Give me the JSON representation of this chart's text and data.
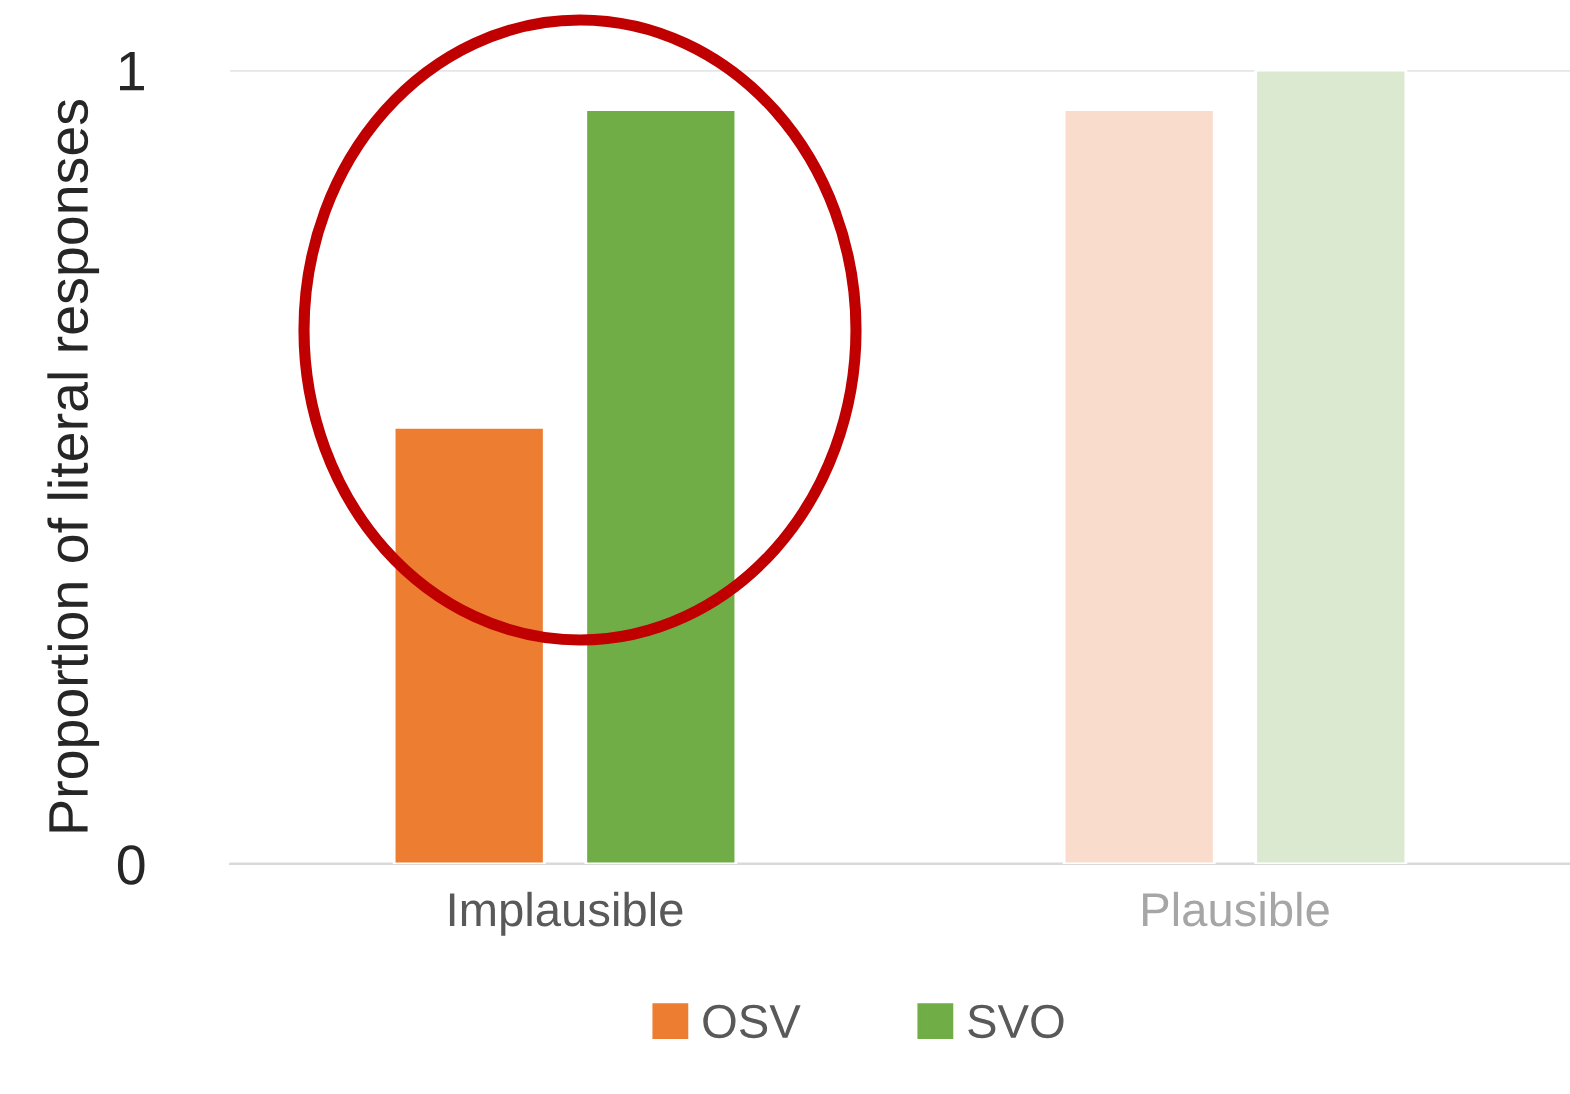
{
  "chart_data": {
    "type": "bar",
    "ylabel": "Proportion of literal responses",
    "categories": [
      "Implausible",
      "Plausible"
    ],
    "series": [
      {
        "name": "OSV",
        "color": "#ed7d31",
        "colors": [
          "#ed7d31",
          "#f9dccc"
        ],
        "values": [
          0.55,
          0.95
        ]
      },
      {
        "name": "SVO",
        "color": "#70ad47",
        "colors": [
          "#70ad47",
          "#dae9d0"
        ],
        "values": [
          0.95,
          1.0
        ]
      }
    ],
    "ylim": [
      0,
      1
    ],
    "yticks": [
      0,
      1
    ],
    "grid": "y",
    "legend": "bottom"
  }
}
